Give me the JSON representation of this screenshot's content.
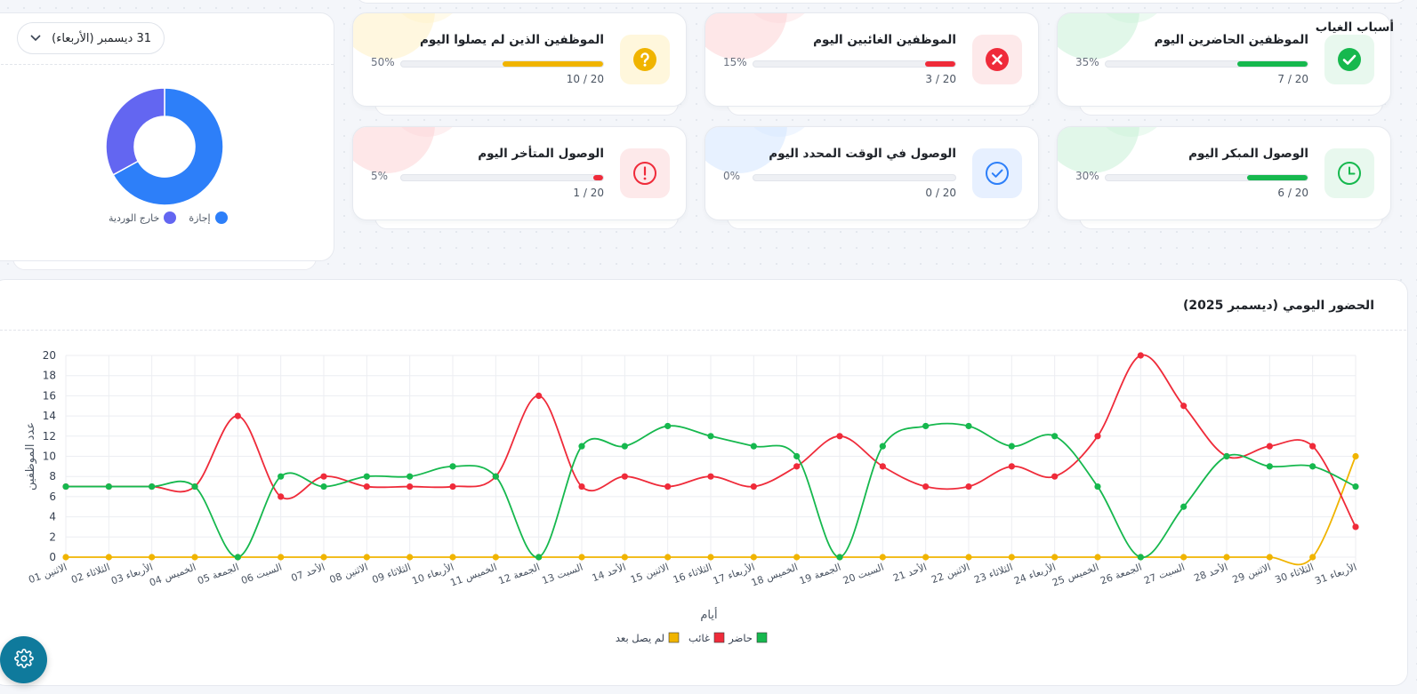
{
  "cards": [
    {
      "id": "present",
      "title": "الموظفين الحاضرين اليوم",
      "pct": "35%",
      "ratio": "7 / 20",
      "fill": 0.35,
      "color": "#16b84e",
      "bg": "#e8f8ee",
      "blob": "#c9f0d7",
      "icon": "check-icon"
    },
    {
      "id": "absent",
      "title": "الموظفين الغائبين اليوم",
      "pct": "15%",
      "ratio": "3 / 20",
      "fill": 0.15,
      "color": "#ef2b3a",
      "bg": "#fde9ea",
      "blob": "#fdd3d6",
      "icon": "close-icon"
    },
    {
      "id": "not-arrived",
      "title": "الموظفين الذين لم يصلوا اليوم",
      "pct": "50%",
      "ratio": "10 / 20",
      "fill": 0.5,
      "color": "#f0b400",
      "bg": "#fff7dc",
      "blob": "#fff0c4",
      "icon": "question-icon"
    },
    {
      "id": "early",
      "title": "الوصول المبكر اليوم",
      "pct": "30%",
      "ratio": "6 / 20",
      "fill": 0.3,
      "color": "#16b84e",
      "bg": "#e8f8ee",
      "blob": "#c9f0d7",
      "icon": "clock-icon"
    },
    {
      "id": "on-time",
      "title": "الوصول في الوقت المحدد اليوم",
      "pct": "0%",
      "ratio": "0 / 20",
      "fill": 0,
      "color": "#2d7ff9",
      "bg": "#e7f0ff",
      "blob": "#d4e5ff",
      "icon": "check-circle-icon"
    },
    {
      "id": "late",
      "title": "الوصول المتأخر اليوم",
      "pct": "5%",
      "ratio": "1 / 20",
      "fill": 0.05,
      "color": "#ef2b3a",
      "bg": "#fde9ea",
      "blob": "#fdd3d6",
      "icon": "alert-icon"
    }
  ],
  "absence": {
    "title": "أسباب الغياب",
    "date": "31 ديسمبر (الأربعاء)",
    "legend": [
      {
        "label": "إجازة",
        "color": "#2d7ff9"
      },
      {
        "label": "خارج الوردية",
        "color": "#6366f1"
      }
    ],
    "slices": [
      0.67,
      0.33
    ]
  },
  "chart": {
    "title": "الحضور اليومي (ديسمبر 2025)",
    "xlabel": "أيام",
    "ylabel": "عدد الموظفين"
  },
  "chart_data": {
    "type": "line",
    "title": "الحضور اليومي (ديسمبر 2025)",
    "xlabel": "أيام",
    "ylabel": "عدد الموظفين",
    "ylim": [
      0,
      20
    ],
    "yticks": [
      0,
      2,
      4,
      6,
      8,
      10,
      12,
      14,
      16,
      18,
      20
    ],
    "categories": [
      "الاثنين 01",
      "الثلاثاء 02",
      "الأربعاء 03",
      "الخميس 04",
      "الجمعة 05",
      "السبت 06",
      "الأحد 07",
      "الاثنين 08",
      "الثلاثاء 09",
      "الأربعاء 10",
      "الخميس 11",
      "الجمعة 12",
      "السبت 13",
      "الأحد 14",
      "الاثنين 15",
      "الثلاثاء 16",
      "الأربعاء 17",
      "الخميس 18",
      "الجمعة 19",
      "السبت 20",
      "الأحد 21",
      "الاثنين 22",
      "الثلاثاء 23",
      "الأربعاء 24",
      "الخميس 25",
      "الجمعة 26",
      "السبت 27",
      "الأحد 28",
      "الاثنين 29",
      "الثلاثاء 30",
      "الأربعاء 31"
    ],
    "series": [
      {
        "name": "حاضر",
        "color": "#16b84e",
        "values": [
          7,
          7,
          7,
          7,
          0,
          8,
          7,
          8,
          8,
          9,
          8,
          0,
          11,
          11,
          13,
          12,
          11,
          10,
          0,
          11,
          13,
          13,
          11,
          12,
          7,
          0,
          5,
          10,
          9,
          9,
          7
        ]
      },
      {
        "name": "غائب",
        "color": "#ef2b3a",
        "values": [
          7,
          7,
          7,
          7,
          14,
          6,
          8,
          7,
          7,
          7,
          8,
          16,
          7,
          8,
          7,
          8,
          7,
          9,
          12,
          9,
          7,
          7,
          9,
          8,
          12,
          20,
          15,
          10,
          11,
          11,
          3
        ]
      },
      {
        "name": "لم يصل بعد",
        "color": "#f0b400",
        "values": [
          0,
          0,
          0,
          0,
          0,
          0,
          0,
          0,
          0,
          0,
          0,
          0,
          0,
          0,
          0,
          0,
          0,
          0,
          0,
          0,
          0,
          0,
          0,
          0,
          0,
          0,
          0,
          0,
          0,
          0,
          10
        ]
      }
    ],
    "grid": true,
    "legend": "bottom-center"
  }
}
